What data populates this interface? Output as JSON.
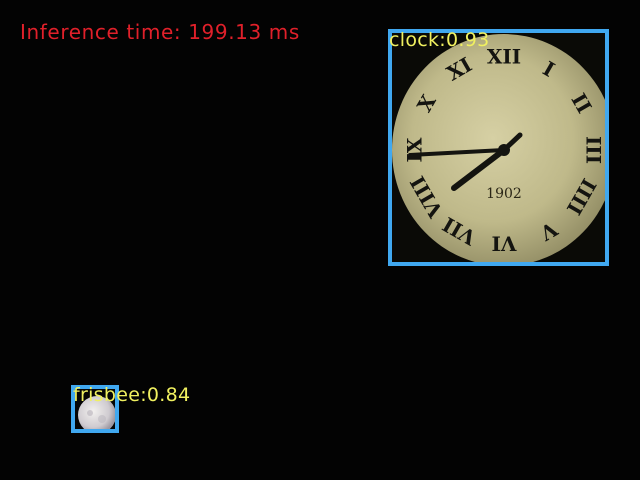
{
  "inference": {
    "text": "Inference time: 199.13 ms",
    "color": "#e0202a"
  },
  "box_color": "#40a8f0",
  "label_color": "#f0f060",
  "detections": [
    {
      "label": "clock:0.93",
      "class": "clock",
      "score": 0.93
    },
    {
      "label": "frisbee:0.84",
      "class": "frisbee",
      "score": 0.84
    }
  ],
  "clock_face": {
    "year": "1902",
    "numerals": [
      "XII",
      "I",
      "II",
      "III",
      "IIII",
      "V",
      "VI",
      "VII",
      "VIII",
      "IX",
      "X",
      "XI"
    ]
  }
}
